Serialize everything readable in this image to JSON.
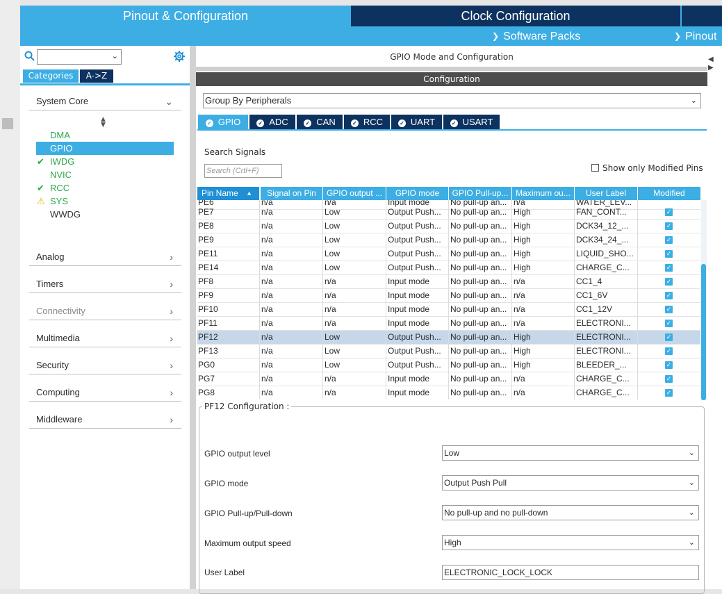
{
  "top_tabs": {
    "pinout_config": "Pinout & Configuration",
    "clock_config": "Clock Configuration"
  },
  "sub_nav": {
    "software_packs": "Software Packs",
    "pinout": "Pinout"
  },
  "left_panel": {
    "categories_label": "Categories",
    "az_label": "A->Z",
    "system_core": {
      "label": "System Core",
      "items": [
        {
          "label": "DMA",
          "status": "none",
          "color": "#2aa84a"
        },
        {
          "label": "GPIO",
          "status": "selected",
          "color": "#ffffff"
        },
        {
          "label": "IWDG",
          "status": "check",
          "color": "#2aa84a"
        },
        {
          "label": "NVIC",
          "status": "none",
          "color": "#2aa84a"
        },
        {
          "label": "RCC",
          "status": "check",
          "color": "#2aa84a"
        },
        {
          "label": "SYS",
          "status": "warning",
          "color": "#2aa84a"
        },
        {
          "label": "WWDG",
          "status": "none",
          "color": "#333333"
        }
      ]
    },
    "categories": [
      {
        "label": "Analog",
        "enabled": true
      },
      {
        "label": "Timers",
        "enabled": true
      },
      {
        "label": "Connectivity",
        "enabled": false
      },
      {
        "label": "Multimedia",
        "enabled": true
      },
      {
        "label": "Security",
        "enabled": true
      },
      {
        "label": "Computing",
        "enabled": true
      },
      {
        "label": "Middleware",
        "enabled": true
      }
    ]
  },
  "main": {
    "title": "GPIO Mode and Configuration",
    "config_header": "Configuration",
    "group_by": "Group By Peripherals",
    "peripheral_tabs": [
      "GPIO",
      "ADC",
      "CAN",
      "RCC",
      "UART",
      "USART"
    ],
    "active_tab": "GPIO",
    "search_signals_label": "Search Signals",
    "search_placeholder": "Search (Crtl+F)",
    "show_modified_label": "Show only Modified Pins",
    "table": {
      "columns": [
        "Pin Name",
        "Signal on Pin",
        "GPIO output ...",
        "GPIO mode",
        "GPIO Pull-up...",
        "Maximum ou...",
        "User Label",
        "Modified"
      ],
      "partial_row": [
        "PE6",
        "n/a",
        "n/a",
        "Input mode",
        "No pull-up an...",
        "n/a",
        "WATER_LEV..."
      ],
      "rows": [
        {
          "pin": "PE7",
          "signal": "n/a",
          "output": "Low",
          "mode": "Output Push...",
          "pull": "No pull-up an...",
          "speed": "High",
          "label": "FAN_CONT...",
          "modified": true
        },
        {
          "pin": "PE8",
          "signal": "n/a",
          "output": "Low",
          "mode": "Output Push...",
          "pull": "No pull-up an...",
          "speed": "High",
          "label": "DCK34_12_...",
          "modified": true
        },
        {
          "pin": "PE9",
          "signal": "n/a",
          "output": "Low",
          "mode": "Output Push...",
          "pull": "No pull-up an...",
          "speed": "High",
          "label": "DCK34_24_...",
          "modified": true
        },
        {
          "pin": "PE11",
          "signal": "n/a",
          "output": "Low",
          "mode": "Output Push...",
          "pull": "No pull-up an...",
          "speed": "High",
          "label": "LIQUID_SHO...",
          "modified": true
        },
        {
          "pin": "PE14",
          "signal": "n/a",
          "output": "Low",
          "mode": "Output Push...",
          "pull": "No pull-up an...",
          "speed": "High",
          "label": "CHARGE_C...",
          "modified": true
        },
        {
          "pin": "PF8",
          "signal": "n/a",
          "output": "n/a",
          "mode": "Input mode",
          "pull": "No pull-up an...",
          "speed": "n/a",
          "label": "CC1_4",
          "modified": true
        },
        {
          "pin": "PF9",
          "signal": "n/a",
          "output": "n/a",
          "mode": "Input mode",
          "pull": "No pull-up an...",
          "speed": "n/a",
          "label": "CC1_6V",
          "modified": true
        },
        {
          "pin": "PF10",
          "signal": "n/a",
          "output": "n/a",
          "mode": "Input mode",
          "pull": "No pull-up an...",
          "speed": "n/a",
          "label": "CC1_12V",
          "modified": true
        },
        {
          "pin": "PF11",
          "signal": "n/a",
          "output": "n/a",
          "mode": "Input mode",
          "pull": "No pull-up an...",
          "speed": "n/a",
          "label": "ELECTRONI...",
          "modified": true
        },
        {
          "pin": "PF12",
          "signal": "n/a",
          "output": "Low",
          "mode": "Output Push...",
          "pull": "No pull-up an...",
          "speed": "High",
          "label": "ELECTRONI...",
          "modified": true,
          "selected": true
        },
        {
          "pin": "PF13",
          "signal": "n/a",
          "output": "Low",
          "mode": "Output Push...",
          "pull": "No pull-up an...",
          "speed": "High",
          "label": "ELECTRONI...",
          "modified": true
        },
        {
          "pin": "PG0",
          "signal": "n/a",
          "output": "Low",
          "mode": "Output Push...",
          "pull": "No pull-up an...",
          "speed": "High",
          "label": "BLEEDER_...",
          "modified": true
        },
        {
          "pin": "PG7",
          "signal": "n/a",
          "output": "n/a",
          "mode": "Input mode",
          "pull": "No pull-up an...",
          "speed": "n/a",
          "label": "CHARGE_C...",
          "modified": true
        },
        {
          "pin": "PG8",
          "signal": "n/a",
          "output": "n/a",
          "mode": "Input mode",
          "pull": "No pull-up an...",
          "speed": "n/a",
          "label": "CHARGE_C...",
          "modified": true
        }
      ]
    },
    "pin_config": {
      "title": "PF12 Configuration :",
      "fields": [
        {
          "label": "GPIO output level",
          "value": "Low",
          "type": "select"
        },
        {
          "label": "GPIO mode",
          "value": "Output Push Pull",
          "type": "select"
        },
        {
          "label": "GPIO Pull-up/Pull-down",
          "value": "No pull-up and no pull-down",
          "type": "select"
        },
        {
          "label": "Maximum output speed",
          "value": "High",
          "type": "select"
        },
        {
          "label": "User Label",
          "value": "ELECTRONIC_LOCK_LOCK",
          "type": "text"
        }
      ]
    }
  },
  "colors": {
    "accent": "#3daee4",
    "dark_navy": "#0d3260",
    "ok_green": "#2aa84a",
    "warning_yellow": "#f0b400",
    "selected_row": "#c6d7ea"
  }
}
